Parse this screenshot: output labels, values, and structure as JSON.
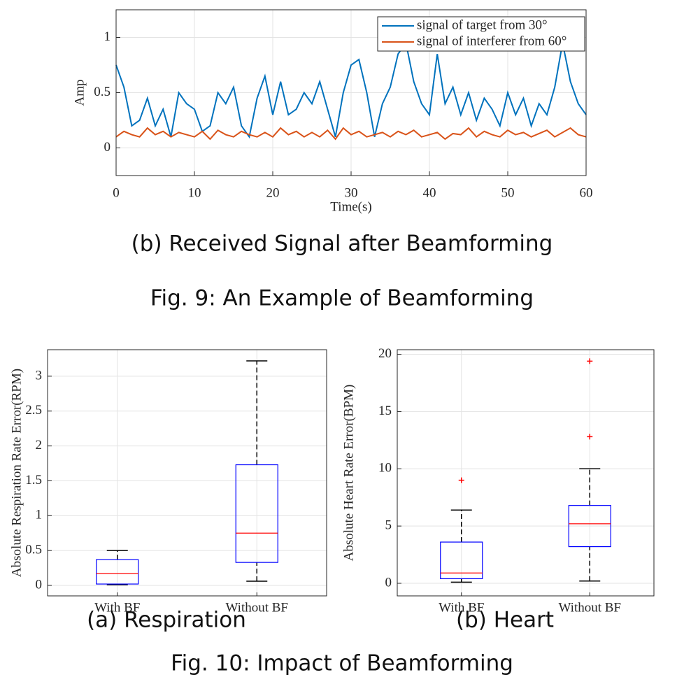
{
  "captions": {
    "fig9_sub": "(b) Received Signal after Beamforming",
    "fig9": "Fig. 9: An Example of Beamforming",
    "fig10_a": "(a) Respiration",
    "fig10_b": "(b) Heart",
    "fig10": "Fig. 10: Impact of Beamforming"
  },
  "chart_data": [
    {
      "type": "line",
      "xlabel": "Time(s)",
      "ylabel": "Amp",
      "grid": true,
      "legend": "northeast",
      "xlim": [
        0,
        60
      ],
      "xticks": [
        0,
        10,
        20,
        30,
        40,
        50,
        60
      ],
      "ylim": [
        -0.25,
        1.25
      ],
      "yticks": [
        0,
        0.5,
        1
      ],
      "x": [
        0,
        1,
        2,
        3,
        4,
        5,
        6,
        7,
        8,
        9,
        10,
        11,
        12,
        13,
        14,
        15,
        16,
        17,
        18,
        19,
        20,
        21,
        22,
        23,
        24,
        25,
        26,
        27,
        28,
        29,
        30,
        31,
        32,
        33,
        34,
        35,
        36,
        37,
        38,
        39,
        40,
        41,
        42,
        43,
        44,
        45,
        46,
        47,
        48,
        49,
        50,
        51,
        52,
        53,
        54,
        55,
        56,
        57,
        58,
        59,
        60
      ],
      "series": [
        {
          "name": "signal of target from 30°",
          "color": "#0072bd",
          "values": [
            0.75,
            0.55,
            0.2,
            0.25,
            0.45,
            0.2,
            0.35,
            0.1,
            0.5,
            0.4,
            0.35,
            0.15,
            0.2,
            0.5,
            0.4,
            0.55,
            0.2,
            0.1,
            0.45,
            0.65,
            0.3,
            0.6,
            0.3,
            0.35,
            0.5,
            0.4,
            0.6,
            0.35,
            0.1,
            0.5,
            0.75,
            0.8,
            0.5,
            0.1,
            0.4,
            0.55,
            0.85,
            0.95,
            0.6,
            0.4,
            0.3,
            0.85,
            0.4,
            0.55,
            0.3,
            0.5,
            0.25,
            0.45,
            0.35,
            0.2,
            0.5,
            0.3,
            0.45,
            0.2,
            0.4,
            0.3,
            0.55,
            0.95,
            0.6,
            0.4,
            0.3
          ]
        },
        {
          "name": "signal of interferer from 60°",
          "color": "#d95319",
          "values": [
            0.1,
            0.15,
            0.12,
            0.1,
            0.18,
            0.12,
            0.15,
            0.1,
            0.14,
            0.12,
            0.1,
            0.15,
            0.08,
            0.16,
            0.12,
            0.1,
            0.15,
            0.12,
            0.1,
            0.14,
            0.1,
            0.18,
            0.12,
            0.15,
            0.1,
            0.14,
            0.1,
            0.16,
            0.08,
            0.18,
            0.12,
            0.15,
            0.1,
            0.12,
            0.14,
            0.1,
            0.15,
            0.12,
            0.16,
            0.1,
            0.12,
            0.14,
            0.08,
            0.13,
            0.12,
            0.18,
            0.1,
            0.15,
            0.12,
            0.1,
            0.16,
            0.12,
            0.14,
            0.1,
            0.13,
            0.16,
            0.1,
            0.14,
            0.18,
            0.12,
            0.1
          ]
        }
      ]
    },
    {
      "type": "box",
      "ylabel": "Absolute Respiration Rate Error(RPM)",
      "grid": true,
      "ylim": [
        -0.15,
        3.38
      ],
      "yticks": [
        0,
        0.5,
        1,
        1.5,
        2,
        2.5,
        3
      ],
      "categories": [
        "With BF",
        "Without BF"
      ],
      "box_color": "#0000ff",
      "median_color": "#ff0000",
      "outlier_color": "#ff0000",
      "boxes": [
        {
          "min": 0.01,
          "q1": 0.02,
          "median": 0.17,
          "q3": 0.37,
          "max": 0.5,
          "outliers": []
        },
        {
          "min": 0.06,
          "q1": 0.33,
          "median": 0.75,
          "q3": 1.73,
          "max": 3.22,
          "outliers": []
        }
      ]
    },
    {
      "type": "box",
      "ylabel": "Absolute Heart Rate Error(BPM)",
      "grid": true,
      "ylim": [
        -1.1,
        20.4
      ],
      "yticks": [
        0,
        5,
        10,
        15,
        20
      ],
      "categories": [
        "With BF",
        "Without BF"
      ],
      "box_color": "#0000ff",
      "median_color": "#ff0000",
      "outlier_color": "#ff0000",
      "boxes": [
        {
          "min": 0.1,
          "q1": 0.4,
          "median": 0.9,
          "q3": 3.6,
          "max": 6.4,
          "outliers": [
            9.0
          ]
        },
        {
          "min": 0.2,
          "q1": 3.2,
          "median": 5.2,
          "q3": 6.8,
          "max": 10.0,
          "outliers": [
            12.8,
            19.4
          ]
        }
      ]
    }
  ]
}
